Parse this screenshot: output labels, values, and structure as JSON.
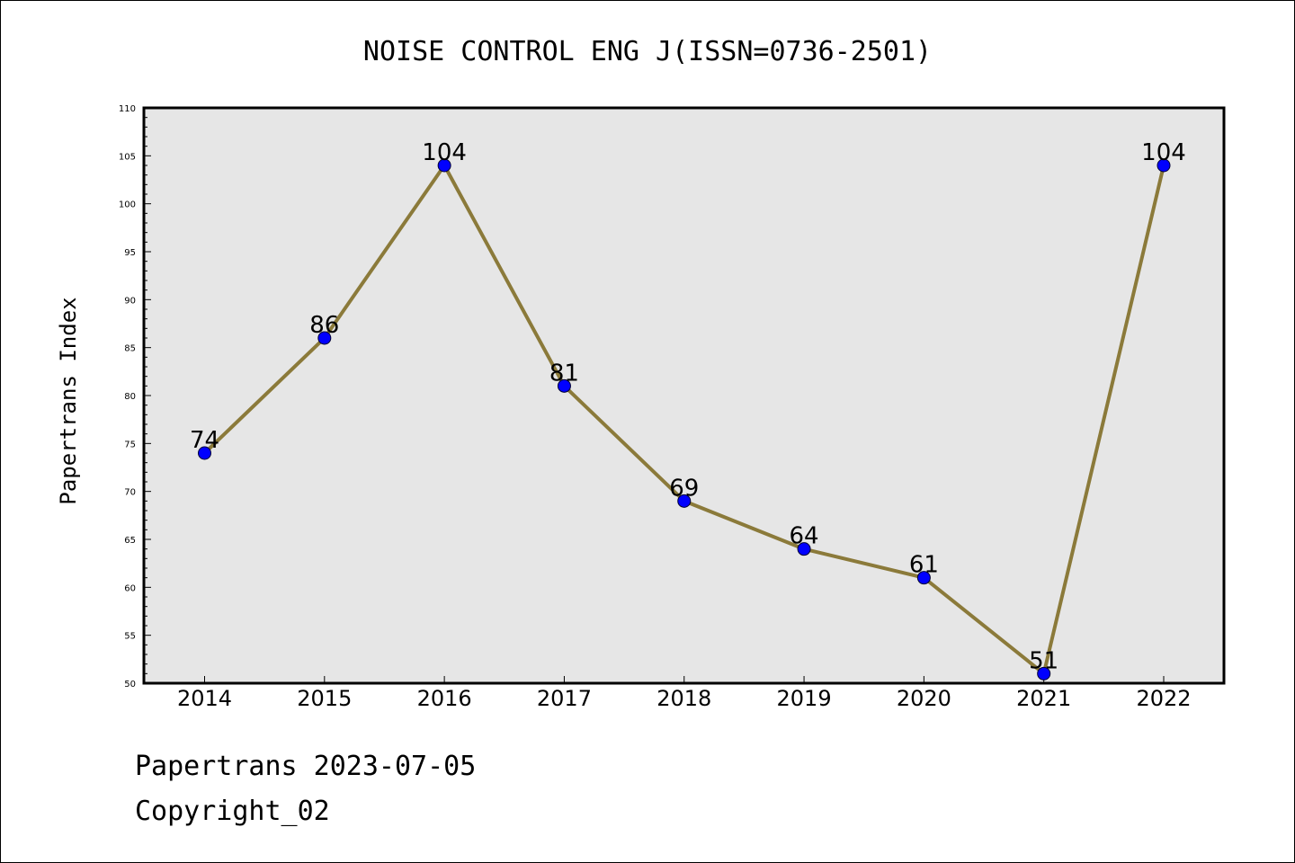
{
  "chart_data": {
    "type": "line",
    "title": "NOISE CONTROL ENG J(ISSN=0736-2501)",
    "xlabel": "",
    "ylabel": "Papertrans Index",
    "categories": [
      "2014",
      "2015",
      "2016",
      "2017",
      "2018",
      "2019",
      "2020",
      "2021",
      "2022"
    ],
    "values": [
      74,
      86,
      104,
      81,
      69,
      64,
      61,
      51,
      104
    ],
    "ylim": [
      50,
      110
    ],
    "yticks": [
      50,
      55,
      60,
      65,
      70,
      75,
      80,
      85,
      90,
      95,
      100,
      105,
      110
    ],
    "grid": false,
    "plot_background": "#e6e6e6",
    "line_color": "#8b7a3a",
    "marker_color": "#0000ff"
  },
  "footer": {
    "date_line": "Papertrans 2023-07-05",
    "copyright": "Copyright_02"
  }
}
